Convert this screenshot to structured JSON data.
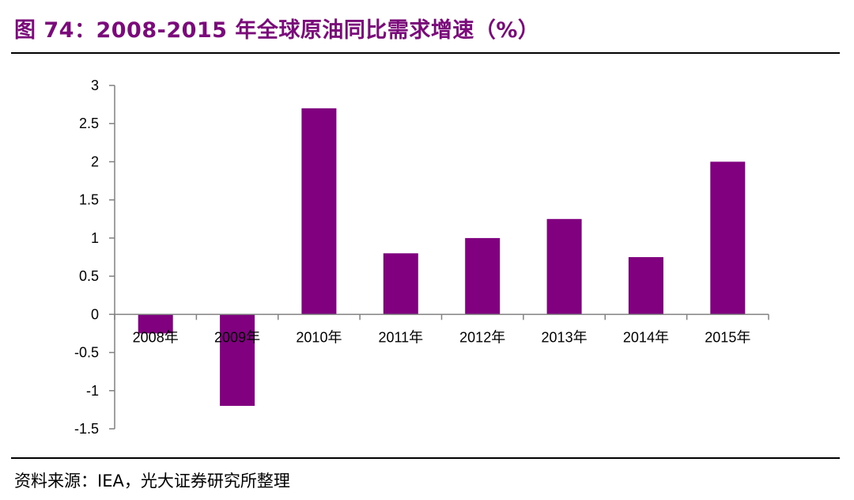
{
  "figure": {
    "title": "图 74：2008-2015 年全球原油同比需求增速（%）",
    "source": "资料来源：IEA，光大证券研究所整理"
  },
  "colors": {
    "title": "#7B0A7A",
    "bar": "#800080",
    "axis": "#808080"
  },
  "chart_data": {
    "type": "bar",
    "categories": [
      "2008年",
      "2009年",
      "2010年",
      "2011年",
      "2012年",
      "2013年",
      "2014年",
      "2015年"
    ],
    "values": [
      -0.25,
      -1.2,
      2.7,
      0.8,
      1.0,
      1.25,
      0.75,
      2.0
    ],
    "y_ticks": [
      3,
      2.5,
      2,
      1.5,
      1,
      0.5,
      0,
      -0.5,
      -1,
      -1.5
    ],
    "ylim": [
      -1.5,
      3
    ],
    "grid": false,
    "legend": "none"
  }
}
